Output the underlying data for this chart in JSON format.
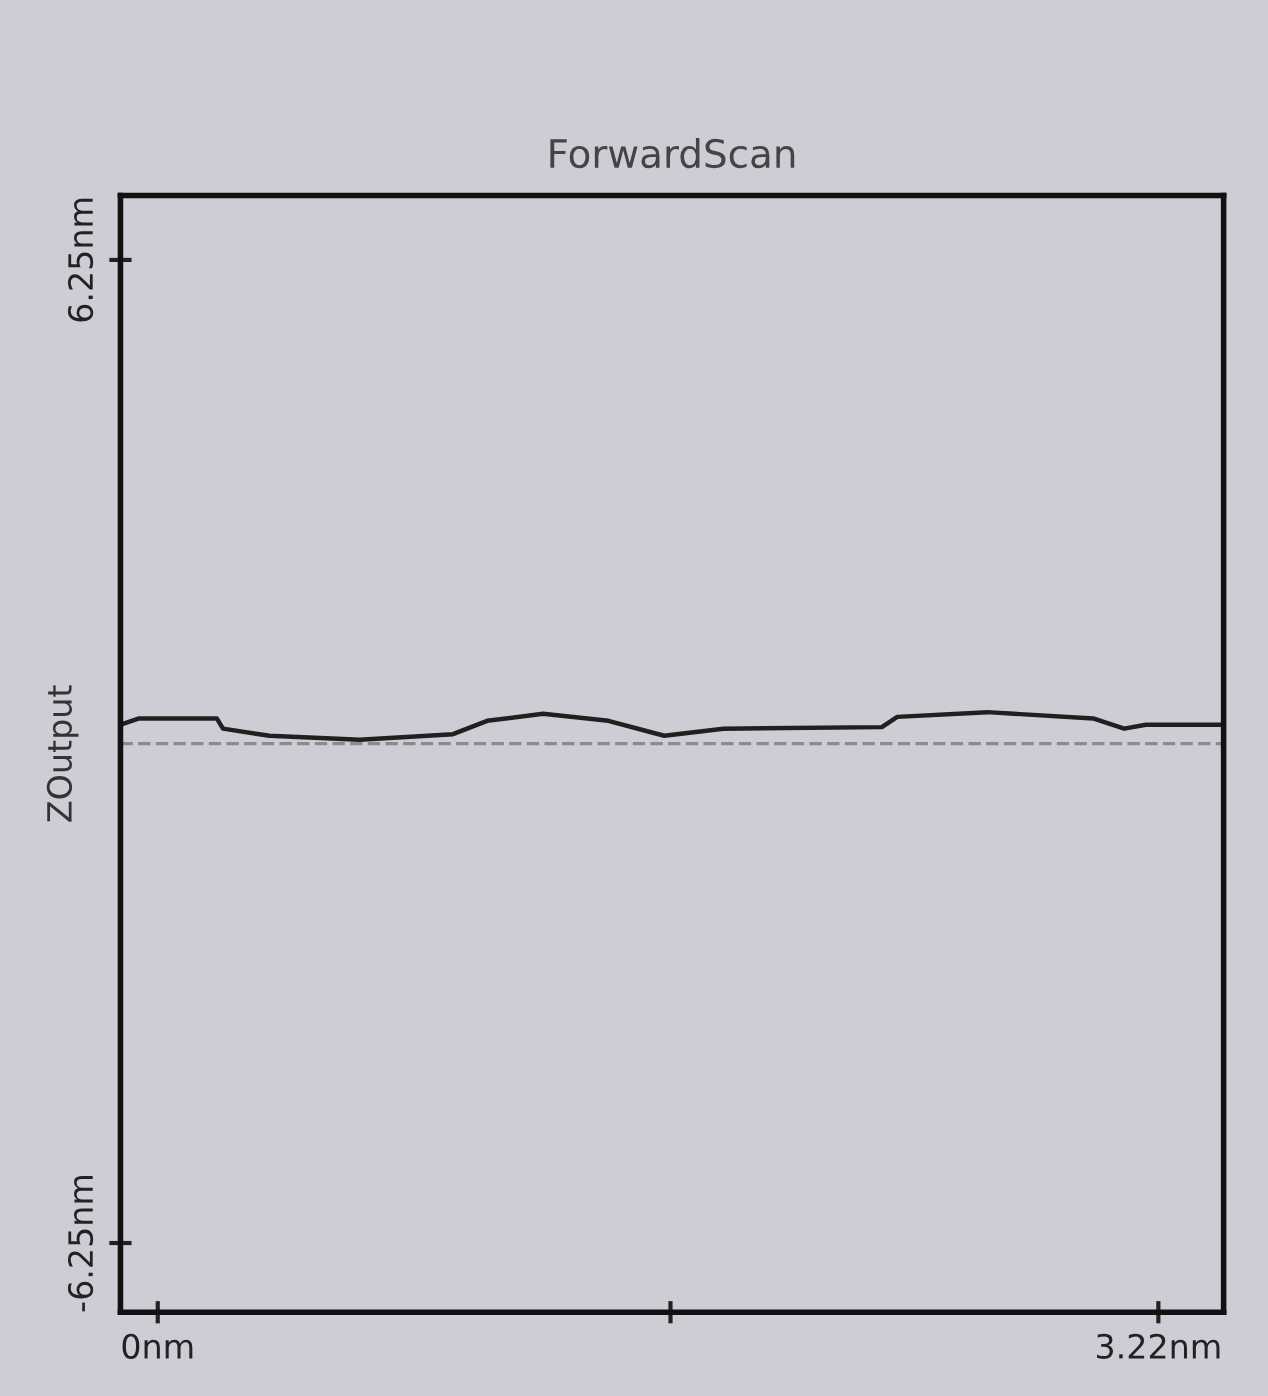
{
  "chart_data": {
    "type": "line",
    "title": "ForwardScan",
    "ylabel": "ZOutput",
    "x": [
      -0.12,
      -0.06,
      0.19,
      0.21,
      0.36,
      0.65,
      0.95,
      1.06,
      1.24,
      1.45,
      1.63,
      1.82,
      2.33,
      2.38,
      2.67,
      3.01,
      3.11,
      3.18,
      3.43
    ],
    "series": [
      {
        "color": "#202020",
        "values": [
          0.34,
          0.42,
          0.42,
          0.29,
          0.2,
          0.15,
          0.22,
          0.39,
          0.48,
          0.39,
          0.2,
          0.29,
          0.31,
          0.44,
          0.5,
          0.42,
          0.29,
          0.34,
          0.34
        ]
      }
    ],
    "xlim": [
      -0.12,
      3.43
    ],
    "xticks": [
      {
        "value": 0,
        "label": "0nm"
      },
      {
        "value": 1.65,
        "label": null
      },
      {
        "value": 3.22,
        "label": "3.22nm"
      }
    ],
    "ylim": [
      -7.13,
      7.07
    ],
    "yticks": [
      {
        "value": -6.25,
        "label": "-6.25nm"
      },
      {
        "value": 6.25,
        "label": "6.25nm"
      }
    ],
    "ref_lines": [
      {
        "axis": "y",
        "value": 0.1,
        "color": "#8a8a90",
        "line_style": "dashed"
      }
    ],
    "grid": false,
    "legend": false,
    "marker": "none",
    "line_style": "solid"
  }
}
